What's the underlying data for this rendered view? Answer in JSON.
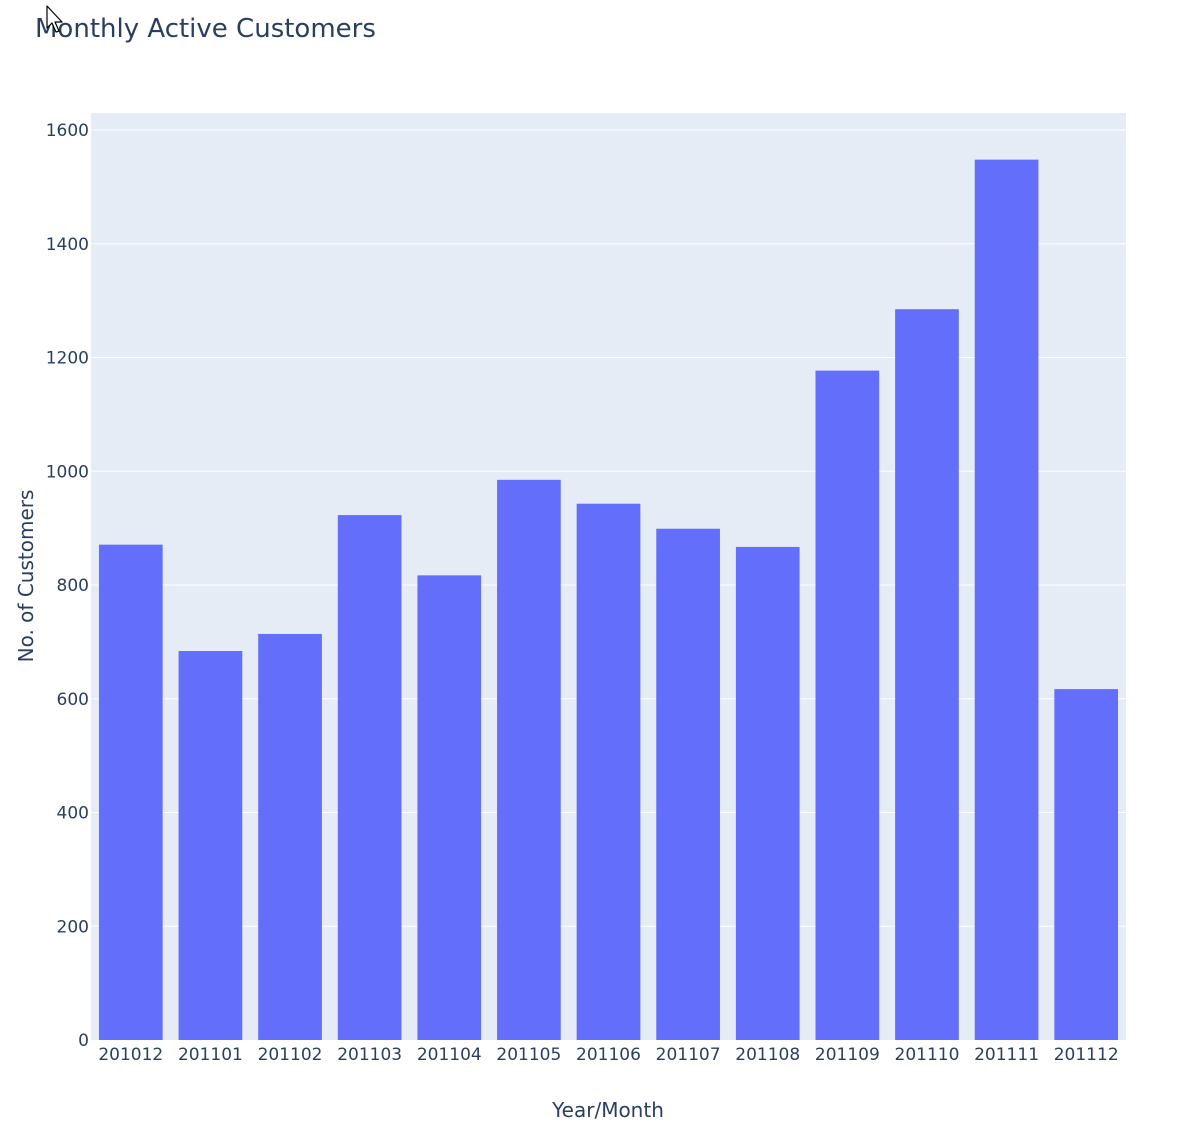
{
  "chart_data": {
    "type": "bar",
    "title": "Monthly Active Customers",
    "xlabel": "Year/Month",
    "ylabel": "No. of Customers",
    "categories": [
      "201012",
      "201101",
      "201102",
      "201103",
      "201104",
      "201105",
      "201106",
      "201107",
      "201108",
      "201109",
      "201110",
      "201111",
      "201112"
    ],
    "values": [
      871,
      684,
      714,
      923,
      817,
      985,
      943,
      899,
      867,
      1177,
      1285,
      1548,
      617
    ],
    "ylim": [
      0,
      1630
    ],
    "yticks": [
      0,
      200,
      400,
      600,
      800,
      1000,
      1200,
      1400,
      1600
    ],
    "grid": true,
    "legend": "none",
    "colors": {
      "bar": "#636efa",
      "plot_background": "#e5ecf6",
      "grid": "#ffffff",
      "text": "#2a3f5f",
      "tick_text": "#2a3f5f"
    }
  },
  "overlay": {
    "cursor_icon": "arrow-cursor-icon"
  }
}
